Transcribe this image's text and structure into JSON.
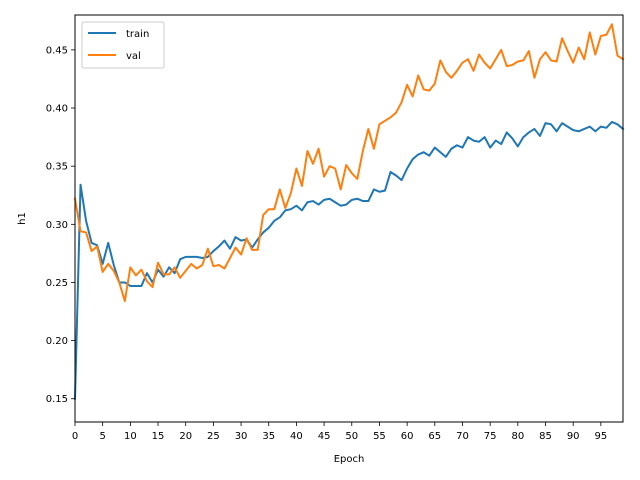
{
  "chart_data": {
    "type": "line",
    "title": "",
    "xlabel": "Epoch",
    "ylabel": "h1",
    "xlim": [
      0,
      99
    ],
    "ylim": [
      0.13,
      0.48
    ],
    "xticks": [
      0,
      5,
      10,
      15,
      20,
      25,
      30,
      35,
      40,
      45,
      50,
      55,
      60,
      65,
      70,
      75,
      80,
      85,
      90,
      95
    ],
    "xtick_labels": [
      "0",
      "5",
      "10",
      "15",
      "20",
      "25",
      "30",
      "35",
      "40",
      "45",
      "50",
      "55",
      "60",
      "65",
      "70",
      "75",
      "80",
      "85",
      "90",
      "95"
    ],
    "yticks": [
      0.15,
      0.2,
      0.25,
      0.3,
      0.35,
      0.4,
      0.45
    ],
    "ytick_labels": [
      "0.15",
      "0.20",
      "0.25",
      "0.30",
      "0.35",
      "0.40",
      "0.45"
    ],
    "grid": false,
    "legend_position": "top-left",
    "series": [
      {
        "name": "train",
        "color": "#1f77b4",
        "values": [
          0.15,
          0.334,
          0.303,
          0.284,
          0.282,
          0.266,
          0.284,
          0.265,
          0.25,
          0.25,
          0.247,
          0.247,
          0.247,
          0.258,
          0.25,
          0.261,
          0.255,
          0.263,
          0.258,
          0.27,
          0.272,
          0.272,
          0.272,
          0.271,
          0.272,
          0.277,
          0.281,
          0.286,
          0.279,
          0.289,
          0.286,
          0.287,
          0.28,
          0.287,
          0.293,
          0.297,
          0.303,
          0.306,
          0.312,
          0.313,
          0.316,
          0.312,
          0.319,
          0.32,
          0.317,
          0.321,
          0.322,
          0.319,
          0.316,
          0.317,
          0.321,
          0.322,
          0.32,
          0.32,
          0.33,
          0.328,
          0.329,
          0.345,
          0.342,
          0.338,
          0.348,
          0.356,
          0.36,
          0.362,
          0.359,
          0.366,
          0.362,
          0.358,
          0.365,
          0.368,
          0.366,
          0.375,
          0.372,
          0.371,
          0.375,
          0.366,
          0.372,
          0.369,
          0.379,
          0.374,
          0.367,
          0.375,
          0.379,
          0.382,
          0.376,
          0.387,
          0.386,
          0.38,
          0.387,
          0.384,
          0.381,
          0.38,
          0.382,
          0.384,
          0.38,
          0.384,
          0.383,
          0.388,
          0.386,
          0.382
        ]
      },
      {
        "name": "val",
        "color": "#ff7f0e",
        "values": [
          0.322,
          0.294,
          0.293,
          0.277,
          0.281,
          0.259,
          0.266,
          0.26,
          0.25,
          0.234,
          0.263,
          0.256,
          0.261,
          0.251,
          0.246,
          0.267,
          0.257,
          0.257,
          0.263,
          0.254,
          0.26,
          0.266,
          0.262,
          0.265,
          0.279,
          0.264,
          0.265,
          0.262,
          0.271,
          0.28,
          0.274,
          0.288,
          0.278,
          0.278,
          0.308,
          0.313,
          0.313,
          0.33,
          0.314,
          0.327,
          0.348,
          0.333,
          0.363,
          0.352,
          0.365,
          0.341,
          0.35,
          0.348,
          0.33,
          0.351,
          0.344,
          0.339,
          0.363,
          0.382,
          0.365,
          0.386,
          0.389,
          0.392,
          0.396,
          0.405,
          0.42,
          0.41,
          0.428,
          0.416,
          0.415,
          0.421,
          0.441,
          0.431,
          0.426,
          0.432,
          0.439,
          0.442,
          0.432,
          0.446,
          0.439,
          0.434,
          0.442,
          0.45,
          0.436,
          0.437,
          0.44,
          0.441,
          0.449,
          0.426,
          0.442,
          0.448,
          0.441,
          0.44,
          0.46,
          0.449,
          0.439,
          0.452,
          0.442,
          0.465,
          0.446,
          0.462,
          0.463,
          0.472,
          0.445,
          0.442
        ]
      }
    ]
  }
}
